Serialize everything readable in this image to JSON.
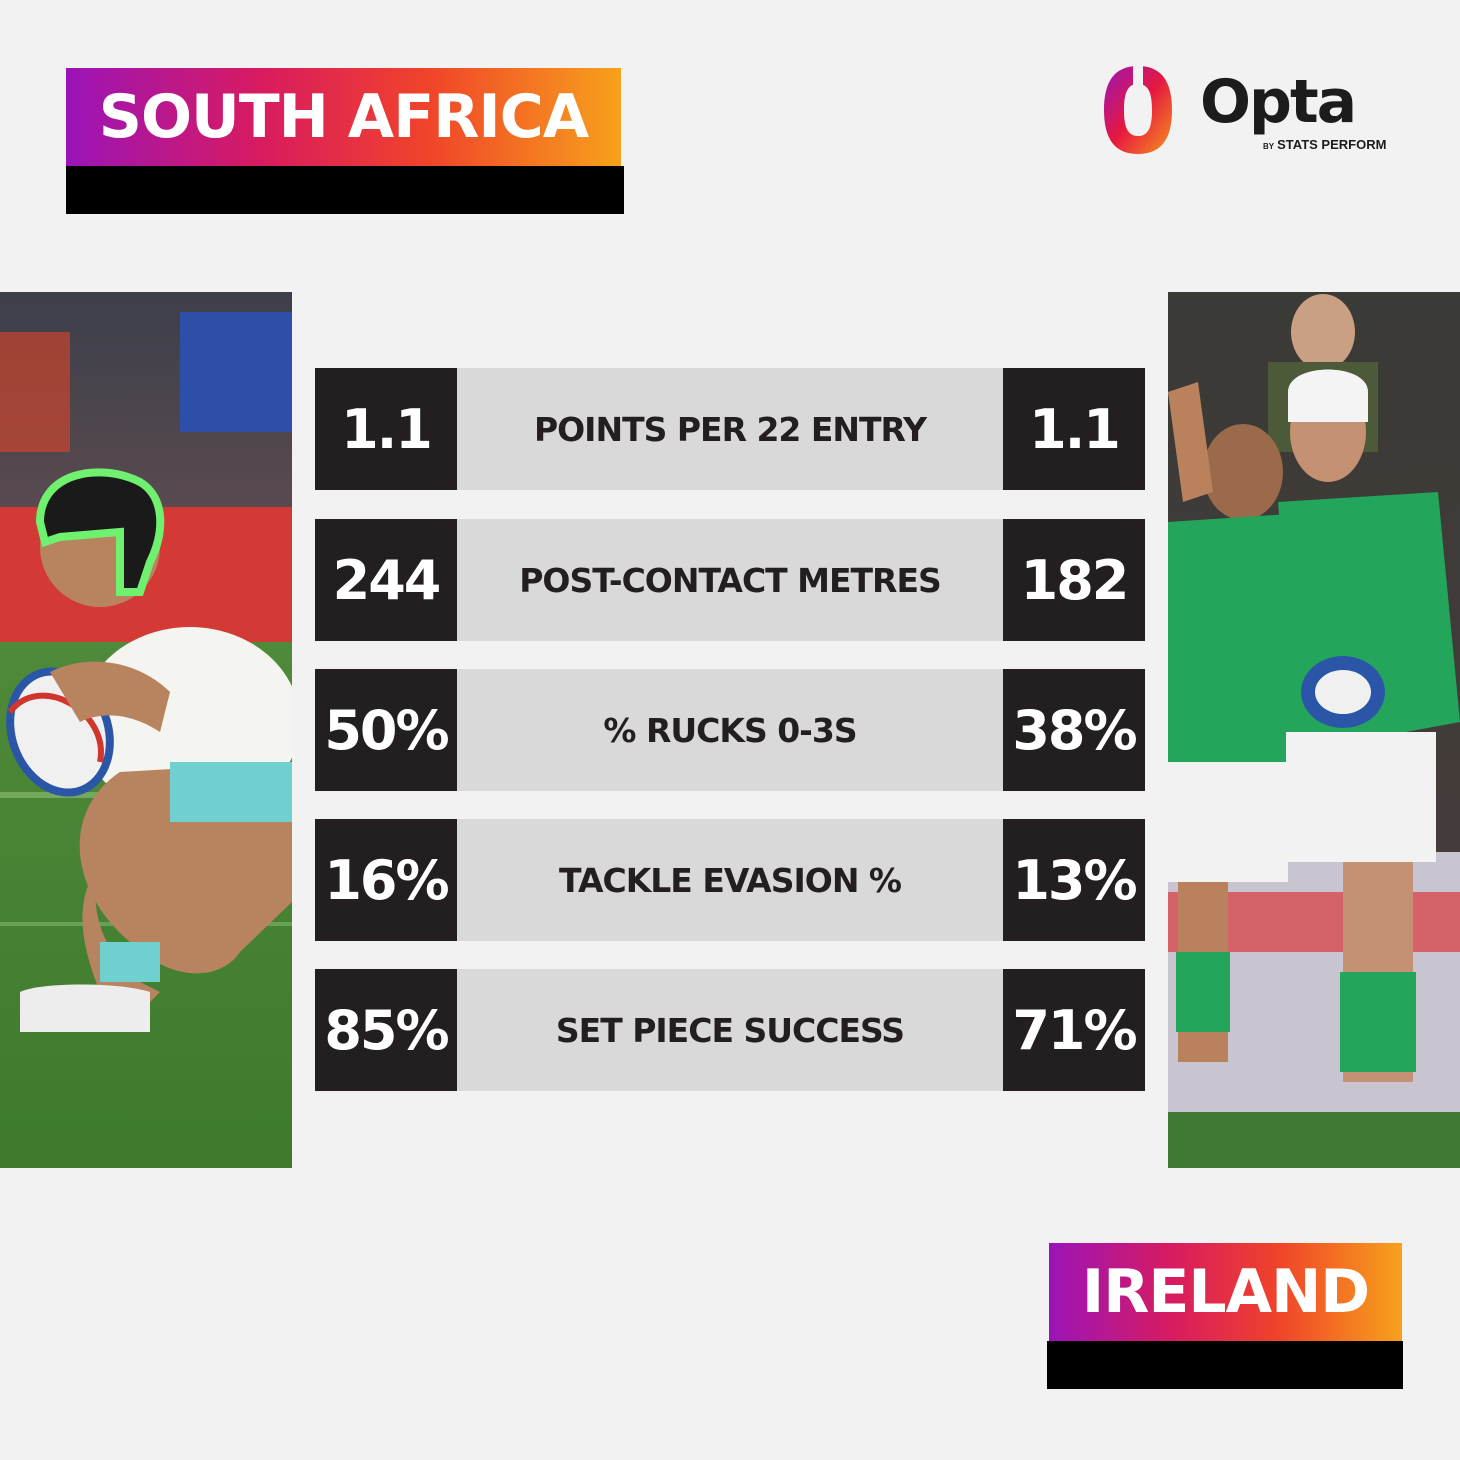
{
  "teams": {
    "home": {
      "name": "SOUTH AFRICA"
    },
    "away": {
      "name": "IRELAND"
    }
  },
  "logo": {
    "wordmark": "Opta",
    "by": "BY",
    "tagline": "STATS PERFORM",
    "colors": [
      "#9b14b8",
      "#e5193f",
      "#f7931e"
    ]
  },
  "photos": {
    "left": {
      "kit_colors": [
        "#ffffff",
        "#5ec6c8"
      ],
      "subject": "South Africa player carrying ball"
    },
    "right": {
      "kit_colors": [
        "#1fa35b",
        "#ffffff"
      ],
      "subject": "Ireland players celebrating"
    }
  },
  "stats": [
    {
      "label": "POINTS PER 22 ENTRY",
      "home": "1.1",
      "away": "1.1"
    },
    {
      "label": "POST-CONTACT METRES",
      "home": "244",
      "away": "182"
    },
    {
      "label": "% RUCKS 0-3S",
      "home": "50%",
      "away": "38%"
    },
    {
      "label": "TACKLE EVASION %",
      "home": "16%",
      "away": "13%"
    },
    {
      "label": "SET PIECE SUCCESS",
      "home": "85%",
      "away": "71%"
    }
  ]
}
